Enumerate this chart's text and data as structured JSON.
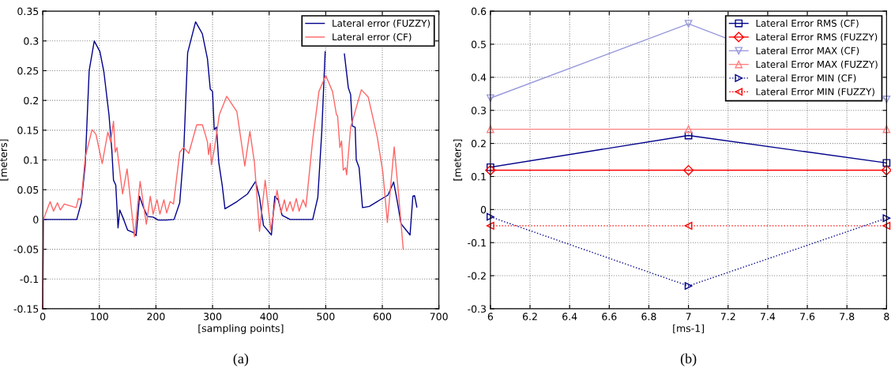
{
  "chart_data": [
    {
      "type": "line",
      "xlabel": "[sampling points]",
      "ylabel": "[meters]",
      "xlim": [
        0,
        700
      ],
      "ylim": [
        -0.15,
        0.35
      ],
      "xticks": [
        0,
        100,
        200,
        300,
        400,
        500,
        600,
        700
      ],
      "yticks": [
        -0.15,
        -0.1,
        -0.05,
        0,
        0.05,
        0.1,
        0.15,
        0.2,
        0.25,
        0.3,
        0.35
      ],
      "grid": true,
      "legend": "top right",
      "marker": "none",
      "line_style": "solid",
      "annotations": [
        "(a)"
      ],
      "series": [
        {
          "name": "Lateral error (FUZZY)",
          "color": "#00008b",
          "x": [
            0,
            1,
            60,
            68,
            75,
            82,
            91,
            101,
            108,
            117,
            122,
            125,
            129,
            133,
            136,
            143,
            150,
            160,
            165,
            171,
            178,
            185,
            195,
            204,
            218,
            232,
            242,
            249,
            256,
            270,
            282,
            291,
            296,
            300,
            303,
            307,
            311,
            317,
            322,
            343,
            362,
            376,
            383,
            390,
            404,
            410,
            416,
            423,
            437,
            477,
            486,
            493,
            499,
            515,
            533,
            540,
            544,
            547,
            552,
            554,
            559,
            565,
            577,
            596,
            610,
            620,
            626,
            633,
            649,
            654,
            657,
            661
          ],
          "values": [
            -0.15,
            0,
            0,
            0.028,
            0.092,
            0.25,
            0.3,
            0.282,
            0.248,
            0.176,
            0.117,
            0.066,
            0.058,
            -0.014,
            0.016,
            0,
            -0.018,
            -0.022,
            -0.027,
            0.039,
            0.02,
            0.005,
            0.004,
            -0.001,
            -0.001,
            0,
            0.028,
            0.113,
            0.28,
            0.332,
            0.312,
            0.27,
            0.219,
            0.215,
            0.151,
            0.155,
            0.096,
            0.058,
            0.018,
            0.03,
            0.043,
            0.064,
            0.037,
            -0.01,
            -0.026,
            0.039,
            0.033,
            0.007,
            0,
            0,
            0.037,
            0.147,
            0.282,
            null,
            0.278,
            0.221,
            0.21,
            0.157,
            0.155,
            0.1,
            0.087,
            0.02,
            0.022,
            0.033,
            0.041,
            0.063,
            0.033,
            -0.007,
            -0.026,
            0.039,
            0.04,
            0.021
          ]
        },
        {
          "name": "Lateral error (CF)",
          "color": "#ff6666",
          "x": [
            0,
            1,
            13,
            19,
            26,
            31,
            38,
            59,
            63,
            68,
            75,
            87,
            94,
            105,
            115,
            120,
            125,
            128,
            131,
            141,
            149,
            162,
            172,
            183,
            190,
            195,
            202,
            207,
            214,
            219,
            225,
            231,
            242,
            249,
            258,
            272,
            282,
            286,
            291,
            293,
            296,
            298,
            303,
            312,
            325,
            343,
            357,
            366,
            374,
            383,
            393,
            403,
            414,
            421,
            427,
            431,
            437,
            442,
            448,
            453,
            460,
            465,
            477,
            488,
            500,
            512,
            519,
            521,
            525,
            528,
            531,
            535,
            537,
            544,
            563,
            575,
            591,
            601,
            609,
            621,
            628,
            637
          ],
          "values": [
            -0.15,
            0,
            0.03,
            0.014,
            0.028,
            0.016,
            0.026,
            0.02,
            0.035,
            0.033,
            0.104,
            0.151,
            0.143,
            0.094,
            0.147,
            0.13,
            0.165,
            0.113,
            0.121,
            0.043,
            0.085,
            -0.029,
            0.064,
            -0.008,
            0.039,
            0.009,
            0.033,
            0.009,
            0.033,
            0.011,
            0.03,
            0.026,
            0.113,
            0.121,
            0.111,
            0.159,
            0.159,
            0.147,
            0.13,
            0.109,
            0.128,
            0.092,
            0.117,
            0.176,
            0.207,
            0.181,
            0.09,
            0.148,
            0.096,
            -0.02,
            0.066,
            -0.018,
            0.049,
            0.011,
            0.033,
            0.014,
            0.03,
            0.014,
            0.035,
            0.014,
            0.033,
            0.021,
            0.134,
            0.215,
            0.242,
            0.215,
            0.176,
            0.174,
            0.121,
            0.132,
            0.083,
            0.087,
            0.075,
            0.155,
            0.218,
            0.206,
            0.139,
            0.079,
            -0.005,
            0.122,
            0.05,
            -0.05
          ]
        }
      ]
    },
    {
      "type": "line",
      "xlabel": "[ms-1]",
      "ylabel": "[meters]",
      "xlim": [
        6,
        8
      ],
      "ylim": [
        -0.3,
        0.6
      ],
      "xticks": [
        6,
        6.2,
        6.4,
        6.6,
        6.8,
        7,
        7.2,
        7.4,
        7.6,
        7.8,
        8
      ],
      "yticks": [
        -0.3,
        -0.2,
        -0.1,
        0,
        0.1,
        0.2,
        0.3,
        0.4,
        0.5,
        0.6
      ],
      "grid": true,
      "legend": "top right",
      "annotations": [
        "(b)"
      ],
      "x": [
        6,
        7,
        8
      ],
      "series": [
        {
          "name": "Lateral Error RMS (CF)",
          "color": "#00008b",
          "marker": "square",
          "line_style": "solid",
          "values": [
            0.128,
            0.224,
            0.141
          ]
        },
        {
          "name": "Lateral Error RMS (FUZZY)",
          "color": "#ff0000",
          "marker": "diamond",
          "line_style": "solid",
          "values": [
            0.119,
            0.119,
            0.119
          ]
        },
        {
          "name": "Lateral Error MAX (CF)",
          "color": "#9999dd",
          "marker": "triangle_down",
          "line_style": "solid",
          "values": [
            0.337,
            0.562,
            0.333
          ]
        },
        {
          "name": "Lateral Error MAX (FUZZY)",
          "color": "#ff8080",
          "marker": "triangle_up",
          "line_style": "solid",
          "values": [
            0.243,
            0.243,
            0.243
          ]
        },
        {
          "name": "Lateral Error MIN (CF)",
          "color": "#00008b",
          "marker": "triangle_right",
          "line_style": "dotted",
          "values": [
            -0.022,
            -0.231,
            -0.026
          ]
        },
        {
          "name": "Lateral Error MIN (FUZZY)",
          "color": "#ff0000",
          "marker": "triangle_left",
          "line_style": "dotted",
          "values": [
            -0.049,
            -0.049,
            -0.049
          ]
        }
      ]
    }
  ]
}
